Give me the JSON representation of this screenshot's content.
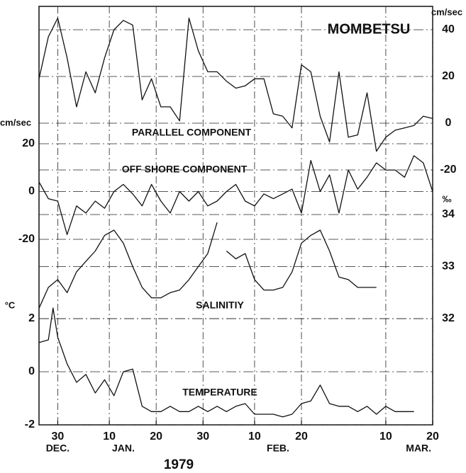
{
  "title": "MOMBETSU",
  "x_axis": {
    "xlim": [
      26,
      110
    ],
    "xticks": [
      30,
      {
        "value": 41,
        "label": "10"
      },
      {
        "value": 51,
        "label": "20"
      },
      {
        "value": 61,
        "label": "30"
      },
      {
        "value": 72,
        "label": "10"
      },
      {
        "value": 82,
        "label": "20"
      },
      {
        "value": 100,
        "label": "10"
      },
      {
        "value": 110,
        "label": "20"
      }
    ],
    "months": [
      {
        "value": 30,
        "label": "DEC."
      },
      {
        "value": 44,
        "label": "JAN."
      },
      {
        "value": 77,
        "label": "FEB."
      },
      {
        "value": 107,
        "label": "MAR."
      }
    ],
    "year": "1979"
  },
  "chart_data": [
    {
      "type": "line",
      "title": "PARALLEL COMPONENT",
      "unit": "cm/sec",
      "axis_side": "right",
      "color": "#111",
      "ylim": [
        -20,
        50
      ],
      "yticks": [
        40,
        20,
        0,
        -20
      ],
      "x": [
        26,
        28,
        30,
        32,
        34,
        36,
        38,
        40,
        42,
        44,
        46,
        48,
        50,
        52,
        54,
        56,
        58,
        60,
        62,
        64,
        66,
        68,
        70,
        72,
        74,
        76,
        78,
        80,
        82,
        84,
        86,
        88,
        90,
        92,
        94,
        96,
        98,
        100,
        102,
        104,
        106,
        108,
        110
      ],
      "values": [
        19,
        37,
        45,
        28,
        7,
        22,
        13,
        28,
        40,
        44,
        42,
        10,
        19,
        7,
        7,
        1,
        45,
        31,
        22,
        22,
        18,
        15,
        16,
        19,
        19,
        4,
        3,
        -2,
        25,
        22,
        3,
        -8,
        22,
        -6,
        -5,
        13,
        -12,
        -6,
        -3,
        -2,
        -1,
        3,
        2
      ]
    },
    {
      "type": "line",
      "title": "OFF SHORE COMPONENT",
      "unit": "cm/sec",
      "axis_side": "left",
      "color": "#111",
      "ylim": [
        -20,
        20
      ],
      "yticks": [
        20,
        0,
        -20
      ],
      "x": [
        26,
        28,
        30,
        32,
        34,
        36,
        38,
        40,
        42,
        44,
        46,
        48,
        50,
        52,
        54,
        56,
        58,
        60,
        62,
        64,
        66,
        68,
        70,
        72,
        74,
        76,
        78,
        80,
        82,
        84,
        86,
        88,
        90,
        92,
        94,
        96,
        98,
        100,
        102,
        104,
        106,
        108,
        110
      ],
      "values": [
        4,
        -3,
        -4,
        -18,
        -6,
        -9,
        -4,
        -7,
        0,
        3,
        -1,
        -6,
        3,
        -4,
        -9,
        0,
        -4,
        0,
        -6,
        -4,
        0,
        3,
        -4,
        -6,
        -1,
        -3,
        -1,
        1,
        -9,
        13,
        0,
        7,
        -9,
        9,
        1,
        6,
        12,
        9,
        9,
        6,
        15,
        12,
        0
      ]
    },
    {
      "type": "line",
      "title": "SALINITIY",
      "unit": "‰",
      "axis_side": "right",
      "color": "#111",
      "ylim": [
        32,
        34
      ],
      "yticks": [
        34,
        33,
        32
      ],
      "x": [
        26,
        28,
        30,
        32,
        34,
        36,
        38,
        40,
        42,
        44,
        46,
        48,
        50,
        52,
        54,
        56,
        58,
        60,
        62,
        64,
        65,
        66,
        68,
        70,
        72,
        74,
        76,
        78,
        80,
        82,
        84,
        86,
        88,
        90,
        92,
        94,
        96,
        98
      ],
      "values": [
        32.2,
        32.6,
        32.75,
        32.5,
        32.9,
        33.1,
        33.3,
        33.6,
        33.7,
        33.45,
        33.0,
        32.6,
        32.4,
        32.4,
        32.5,
        32.55,
        32.75,
        33.0,
        33.25,
        33.85,
        null,
        33.3,
        33.15,
        33.25,
        32.75,
        32.55,
        32.55,
        32.6,
        32.9,
        33.45,
        33.6,
        33.7,
        33.3,
        32.8,
        32.75,
        32.6,
        32.6,
        32.6
      ]
    },
    {
      "type": "line",
      "title": "TEMPERATURE",
      "unit": "°C",
      "axis_side": "left",
      "color": "#111",
      "ylim": [
        -2,
        2
      ],
      "yticks": [
        2,
        0,
        -2
      ],
      "x": [
        26,
        28,
        29,
        30,
        32,
        34,
        36,
        38,
        40,
        42,
        44,
        46,
        48,
        50,
        52,
        54,
        56,
        58,
        60,
        62,
        64,
        66,
        68,
        70,
        72,
        74,
        76,
        78,
        80,
        82,
        84,
        86,
        88,
        90,
        92,
        94,
        96,
        98,
        100,
        102,
        104,
        106
      ],
      "values": [
        1.1,
        1.2,
        2.4,
        1.3,
        0.3,
        -0.4,
        -0.1,
        -0.8,
        -0.3,
        -0.9,
        0,
        0.1,
        -1.3,
        -1.5,
        -1.5,
        -1.3,
        -1.5,
        -1.5,
        -1.3,
        -1.5,
        -1.3,
        -1.5,
        -1.3,
        -1.2,
        -1.6,
        -1.6,
        -1.6,
        -1.7,
        -1.6,
        -1.2,
        -1.1,
        -0.5,
        -1.2,
        -1.3,
        -1.3,
        -1.5,
        -1.3,
        -1.6,
        -1.3,
        -1.5,
        -1.5,
        -1.5
      ]
    }
  ]
}
